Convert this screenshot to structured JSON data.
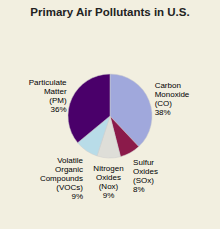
{
  "chart_data": {
    "type": "pie",
    "title": "Primary Air Pollutants in U.S.",
    "categories": [
      "Carbon\nMonoxide\n(CO)\n38%",
      "Sulfur\nOxides\n(SOx)\n8%",
      "Nitrogen\nOxides\n(Nox)\n9%",
      "Volatile\nOrganic\nCompounds\n(VOCs)\n9%",
      "Particulate\nMatter\n(PM)\n36%"
    ],
    "values": [
      38,
      8,
      9,
      9,
      36
    ],
    "colors": [
      "#a0a8dc",
      "#8b1a4a",
      "#deded8",
      "#b8dce8",
      "#4a006a"
    ]
  }
}
